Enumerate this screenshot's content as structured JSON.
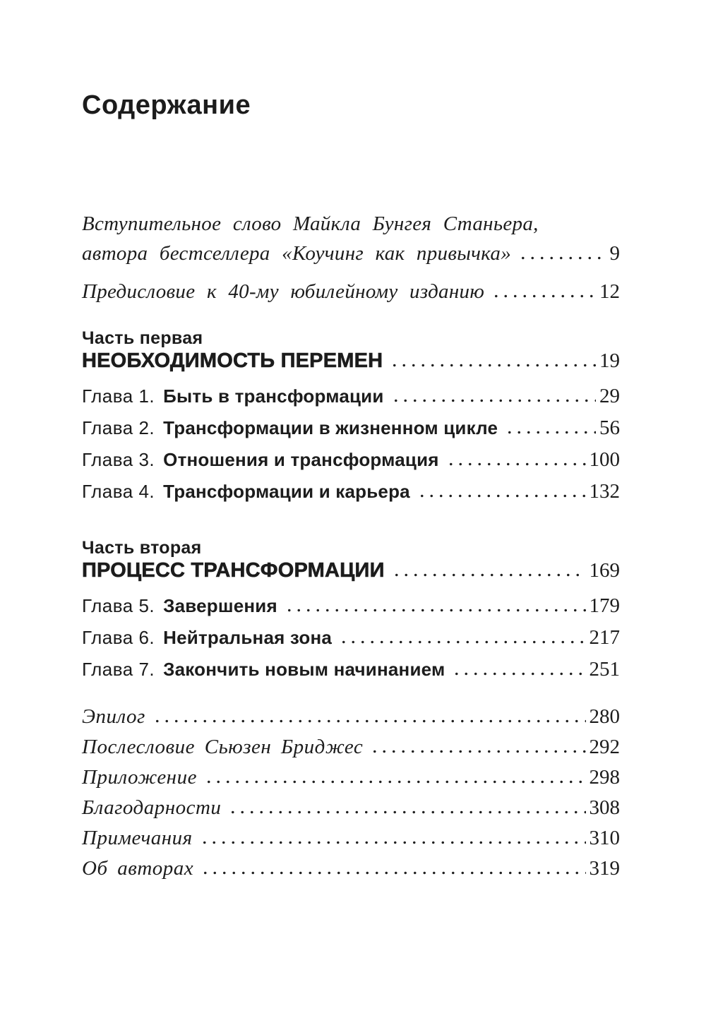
{
  "colors": {
    "paper": "#ffffff",
    "ink": "#1c1c1c"
  },
  "page": {
    "title": "Содержание"
  },
  "front_matter": [
    {
      "label_line1": "Вступительное слово Майкла Бунгея Станьера,",
      "label_line2": "автора бестселлера «Коучинг как привычка»",
      "page": "9"
    },
    {
      "label": "Предисловие к 40-му юбилейному изданию",
      "page": "12"
    }
  ],
  "parts": [
    {
      "kicker": "Часть первая",
      "title": "НЕОБХОДИМОСТЬ ПЕРЕМЕН",
      "page": "19",
      "chapters": [
        {
          "label": "Глава 1.",
          "title": "Быть в трансформации",
          "page": "29"
        },
        {
          "label": "Глава 2.",
          "title": "Трансформации в жизненном цикле",
          "page": "56"
        },
        {
          "label": "Глава 3.",
          "title": "Отношения и трансформация",
          "page": "100"
        },
        {
          "label": "Глава 4.",
          "title": "Трансформации и карьера",
          "page": "132"
        }
      ]
    },
    {
      "kicker": "Часть вторая",
      "title": "ПРОЦЕСС ТРАНСФОРМАЦИИ",
      "page": "169",
      "chapters": [
        {
          "label": "Глава 5.",
          "title": "Завершения",
          "page": "179"
        },
        {
          "label": "Глава 6.",
          "title": "Нейтральная зона",
          "page": "217"
        },
        {
          "label": "Глава 7.",
          "title": "Закончить новым начинанием",
          "page": "251"
        }
      ]
    }
  ],
  "back_matter": [
    {
      "label": "Эпилог",
      "page": "280"
    },
    {
      "label": "Послесловие Сьюзен Бриджес",
      "page": "292"
    },
    {
      "label": "Приложение",
      "page": "298"
    },
    {
      "label": "Благодарности",
      "page": "308"
    },
    {
      "label": "Примечания",
      "page": "310"
    },
    {
      "label": "Об авторах",
      "page": "319"
    }
  ]
}
